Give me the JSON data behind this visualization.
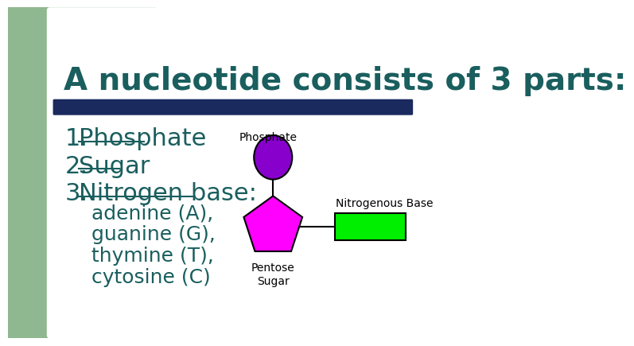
{
  "title": "A nucleotide consists of 3 parts:",
  "title_color": "#1a5e5e",
  "title_fontsize": 28,
  "background_color": "#ffffff",
  "left_panel_color": "#90b890",
  "divider_color": "#1a2a5e",
  "list_items": [
    "Phosphate",
    "Sugar",
    "Nitrogen base:"
  ],
  "list_color": "#1a5e5e",
  "list_fontsize": 22,
  "sub_items": [
    "adenine (A),",
    "guanine (G),",
    "thymine (T),",
    "cytosine (C)"
  ],
  "sub_color": "#1a5e5e",
  "sub_fontsize": 18,
  "phosphate_color": "#8800cc",
  "sugar_color": "#ff00ff",
  "base_color": "#00ee00",
  "label_color": "#000000",
  "label_fontsize": 10,
  "phosphate_label": "Phosphate",
  "base_label": "Nitrogenous Base",
  "sugar_label": "Pentose\nSugar"
}
